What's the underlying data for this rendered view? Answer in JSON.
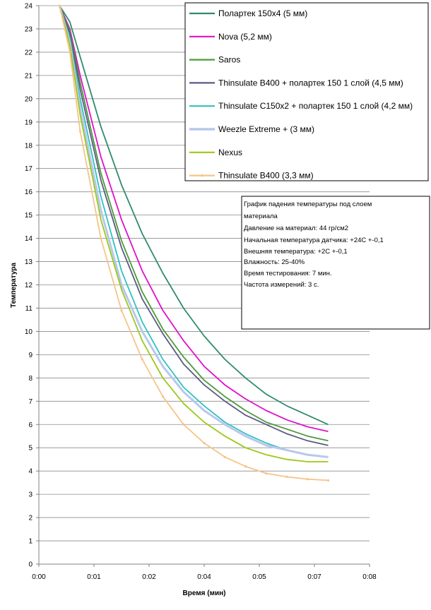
{
  "chart_data": {
    "type": "line",
    "title": "",
    "xlabel": "Время (мин)",
    "ylabel": "Температура",
    "xlim": [
      0,
      8
    ],
    "ylim": [
      0,
      24
    ],
    "grid": "horizontal",
    "legend_position": "top-right",
    "x_tick_labels": [
      "0:00",
      "0:01",
      "0:02",
      "0:04",
      "0:05",
      "0:07",
      "0:08"
    ],
    "y_tick_labels": [
      "0",
      "1",
      "2",
      "3",
      "4",
      "5",
      "6",
      "7",
      "8",
      "9",
      "10",
      "11",
      "12",
      "13",
      "14",
      "15",
      "16",
      "17",
      "18",
      "19",
      "20",
      "21",
      "22",
      "23",
      "24"
    ],
    "annotation": [
      "График падения температуры под слоем",
      "материала",
      "Давление на материал: 44 гр/см2",
      "Начальная температура датчика: +24С +-0,1",
      "Внешняя температура: +2С +-0,1",
      "Влажность: 25-40%",
      "Время тестирования: 7 мин.",
      "Частота измерений: 3 с."
    ],
    "x": [
      0.5,
      0.75,
      1.0,
      1.5,
      2.0,
      2.5,
      3.0,
      3.5,
      4.0,
      4.5,
      5.0,
      5.5,
      6.0,
      6.5,
      7.0
    ],
    "series": [
      {
        "name": "Полартек 150х4 (5 мм)",
        "color": "#2e8b6b",
        "values": [
          24.0,
          23.3,
          21.8,
          18.8,
          16.3,
          14.2,
          12.5,
          11.0,
          9.8,
          8.8,
          8.0,
          7.3,
          6.8,
          6.4,
          6.0
        ]
      },
      {
        "name": "Nova (5,2 мм)",
        "color": "#e010c8",
        "values": [
          24.0,
          23.0,
          21.0,
          17.5,
          14.8,
          12.6,
          10.9,
          9.6,
          8.5,
          7.7,
          7.1,
          6.6,
          6.2,
          5.9,
          5.7
        ]
      },
      {
        "name": "Saros",
        "color": "#4a9a3a",
        "values": [
          24.0,
          22.9,
          20.7,
          16.8,
          13.9,
          11.7,
          10.1,
          8.9,
          7.9,
          7.2,
          6.6,
          6.1,
          5.8,
          5.5,
          5.3
        ]
      },
      {
        "name": "Thinsulate В400 + полартек 150 1 слой (4,5 мм)",
        "color": "#5a5a80",
        "values": [
          24.0,
          22.8,
          20.4,
          16.5,
          13.6,
          11.4,
          9.9,
          8.6,
          7.7,
          7.0,
          6.4,
          6.0,
          5.6,
          5.3,
          5.1
        ]
      },
      {
        "name": "Thinsulate С150х2 + полартек 150 1 слой (4,2 мм)",
        "color": "#30c0c0",
        "values": [
          24.0,
          22.6,
          20.0,
          15.8,
          12.6,
          10.4,
          8.8,
          7.6,
          6.8,
          6.1,
          5.6,
          5.2,
          4.9,
          4.7,
          4.6
        ]
      },
      {
        "name": "Weezle Extreme + (3 мм)",
        "color": "#b8c8ec",
        "values": [
          24.0,
          22.4,
          19.6,
          15.2,
          12.0,
          10.0,
          8.5,
          7.4,
          6.6,
          6.0,
          5.5,
          5.1,
          4.9,
          4.7,
          4.6
        ]
      },
      {
        "name": "Nexus",
        "color": "#9cc818",
        "values": [
          24.0,
          22.3,
          19.3,
          14.8,
          11.8,
          9.6,
          8.0,
          6.9,
          6.1,
          5.5,
          5.0,
          4.7,
          4.5,
          4.4,
          4.4
        ]
      },
      {
        "name": "Thinsulate В400 (3,3 мм)",
        "color": "#f5c48a",
        "values": [
          24.0,
          22.0,
          18.6,
          14.0,
          10.9,
          8.8,
          7.2,
          6.0,
          5.2,
          4.6,
          4.2,
          3.9,
          3.75,
          3.65,
          3.6
        ]
      }
    ]
  }
}
